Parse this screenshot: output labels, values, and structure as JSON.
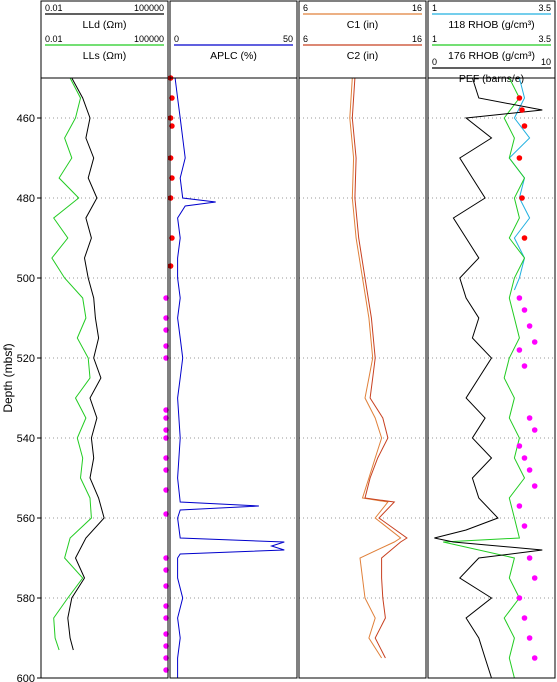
{
  "chart_data": {
    "type": "line",
    "y_axis": {
      "label": "Depth   (mbsf)",
      "range": [
        450,
        600
      ],
      "ticks": [
        460,
        480,
        500,
        520,
        540,
        560,
        580,
        600
      ]
    },
    "tracks": [
      {
        "id": "resistivity",
        "headers": [
          {
            "name": "LLd (Ωm)",
            "min": "0.01",
            "max": "100000",
            "color": "#000000"
          },
          {
            "name": "LLs (Ωm)",
            "min": "0.01",
            "max": "100000",
            "color": "#22cc22"
          }
        ],
        "scale": "log",
        "series": [
          {
            "name": "LLd (Ωm)",
            "color": "#000000",
            "depth": [
              450,
              455,
              460,
              465,
              470,
              475,
              480,
              485,
              490,
              495,
              500,
              505,
              510,
              515,
              520,
              525,
              530,
              535,
              540,
              545,
              550,
              555,
              560,
              565,
              570,
              575,
              580,
              585,
              590,
              593
            ],
            "values": [
              0.5,
              2.0,
              5.0,
              3.0,
              8.0,
              4.0,
              12.0,
              3.0,
              6.0,
              2.5,
              4.0,
              8.0,
              10.0,
              15.0,
              8.0,
              20.0,
              5.0,
              12.0,
              6.0,
              8.0,
              5.0,
              15.0,
              30.0,
              3.0,
              0.8,
              2.5,
              0.5,
              0.3,
              0.4,
              0.6
            ]
          },
          {
            "name": "LLs (Ωm)",
            "color": "#22cc22",
            "depth": [
              450,
              455,
              460,
              465,
              470,
              475,
              480,
              485,
              490,
              495,
              500,
              505,
              510,
              515,
              520,
              525,
              530,
              535,
              540,
              545,
              550,
              555,
              560,
              565,
              570,
              575,
              580,
              585,
              590,
              593
            ],
            "values": [
              0.4,
              1.5,
              0.8,
              0.2,
              0.5,
              0.1,
              1.2,
              0.05,
              0.3,
              0.04,
              0.2,
              2.0,
              3.0,
              1.0,
              4.0,
              5.0,
              0.8,
              3.0,
              1.0,
              2.0,
              1.5,
              5.0,
              6.0,
              0.4,
              0.2,
              2.0,
              0.3,
              0.05,
              0.06,
              0.1
            ]
          }
        ],
        "markers": {
          "color": "#ff00ff",
          "depth": [
            505,
            510,
            513,
            517,
            520,
            533,
            535,
            538,
            540,
            545,
            548,
            553,
            559,
            570,
            573,
            577,
            582,
            585,
            589,
            592,
            595,
            598
          ]
        }
      },
      {
        "id": "porosity",
        "headers": [
          {
            "name": "APLC (%)",
            "min": "0",
            "max": "50",
            "color": "#0000cc"
          }
        ],
        "scale": "linear",
        "series": [
          {
            "name": "APLC (%)",
            "color": "#0000cc",
            "depth": [
              450,
              455,
              460,
              465,
              470,
              475,
              480,
              481,
              482,
              485,
              490,
              495,
              500,
              505,
              510,
              515,
              520,
              525,
              530,
              540,
              550,
              556,
              557,
              558,
              560,
              565,
              566,
              567,
              568,
              569,
              570,
              575,
              580,
              585,
              590,
              595,
              600
            ],
            "values": [
              2,
              3,
              4,
              5,
              6,
              4,
              5,
              18,
              6,
              3,
              4,
              3,
              3,
              4,
              3,
              4,
              5,
              4,
              3,
              4,
              3,
              4,
              35,
              4,
              3,
              4,
              45,
              40,
              45,
              4,
              3,
              3,
              5,
              3,
              4,
              3,
              3
            ]
          }
        ],
        "markers": {
          "color": "#ff0000",
          "depth": [
            450,
            455,
            460,
            462,
            470,
            475,
            480,
            490,
            497
          ]
        }
      },
      {
        "id": "caliper",
        "headers": [
          {
            "name": "C1 (in)",
            "min": "6",
            "max": "16",
            "color": "#e0803a"
          },
          {
            "name": "C2 (in)",
            "min": "6",
            "max": "16",
            "color": "#c84020"
          }
        ],
        "scale": "linear",
        "series": [
          {
            "name": "C1 (in)",
            "color": "#e0803a",
            "depth": [
              450,
              460,
              470,
              480,
              490,
              500,
              510,
              520,
              525,
              530,
              535,
              540,
              545,
              550,
              555,
              556,
              560,
              565,
              566,
              570,
              575,
              580,
              585,
              590,
              595
            ],
            "values": [
              10.2,
              10.0,
              10.3,
              10.2,
              10.5,
              11.0,
              11.5,
              11.8,
              11.5,
              11.2,
              12.0,
              12.5,
              12.0,
              11.5,
              11.0,
              13.0,
              12.0,
              14.0,
              13.5,
              10.8,
              11.0,
              11.2,
              12.0,
              11.5,
              12.5
            ]
          },
          {
            "name": "C2 (in)",
            "color": "#c84020",
            "depth": [
              450,
              460,
              470,
              480,
              490,
              500,
              510,
              520,
              525,
              530,
              535,
              540,
              545,
              550,
              555,
              556,
              560,
              565,
              566,
              570,
              575,
              580,
              585,
              590,
              595
            ],
            "values": [
              10.4,
              10.2,
              10.5,
              10.4,
              10.7,
              11.2,
              11.7,
              12.0,
              11.8,
              11.6,
              12.6,
              13.0,
              12.2,
              11.6,
              11.2,
              13.5,
              12.3,
              14.5,
              14.0,
              12.5,
              12.5,
              12.6,
              12.8,
              12.0,
              12.8
            ]
          }
        ]
      },
      {
        "id": "density",
        "headers": [
          {
            "name": "118 RHOB (g/cm³)",
            "min": "1",
            "max": "3.5",
            "color": "#20b0e0"
          },
          {
            "name": "176 RHOB (g/cm³)",
            "min": "1",
            "max": "3.5",
            "color": "#22cc22"
          },
          {
            "name": "PEF (barns/e)",
            "min": "0",
            "max": "10",
            "color": "#000000"
          }
        ],
        "series": [
          {
            "name": "118 RHOB (g/cm³)",
            "color": "#20b0e0",
            "min": 1,
            "max": 3.5,
            "depth": [
              450,
              455,
              460,
              465,
              470,
              475,
              480,
              485,
              490,
              495,
              500,
              503
            ],
            "values": [
              2.8,
              2.9,
              2.7,
              3.0,
              2.6,
              2.9,
              2.8,
              3.0,
              2.7,
              2.9,
              2.8,
              2.7
            ]
          },
          {
            "name": "176 RHOB (g/cm³)",
            "color": "#22cc22",
            "min": 1,
            "max": 3.5,
            "depth": [
              450,
              455,
              460,
              465,
              470,
              475,
              480,
              485,
              490,
              495,
              500,
              505,
              510,
              515,
              520,
              525,
              530,
              535,
              540,
              545,
              550,
              555,
              560,
              565,
              566,
              570,
              575,
              580,
              585,
              590,
              595,
              600
            ],
            "values": [
              2.6,
              2.8,
              2.5,
              2.7,
              2.6,
              2.9,
              2.7,
              2.8,
              2.6,
              2.9,
              2.7,
              2.6,
              2.7,
              2.8,
              2.6,
              2.5,
              2.7,
              2.6,
              2.8,
              2.7,
              2.9,
              2.6,
              2.7,
              2.8,
              1.3,
              2.7,
              2.6,
              2.8,
              2.5,
              2.7,
              2.6,
              2.7
            ]
          },
          {
            "name": "PEF (barns/e)",
            "color": "#000000",
            "min": 0,
            "max": 10,
            "depth": [
              450,
              455,
              458,
              460,
              465,
              470,
              475,
              480,
              485,
              490,
              495,
              500,
              505,
              510,
              515,
              520,
              525,
              530,
              535,
              540,
              545,
              550,
              555,
              560,
              563,
              565,
              566,
              568,
              570,
              575,
              580,
              585,
              590,
              595,
              600
            ],
            "values": [
              3.5,
              4.0,
              9.0,
              3.0,
              5.0,
              2.5,
              3.5,
              4.5,
              2.0,
              3.0,
              4.0,
              2.5,
              3.0,
              4.0,
              3.5,
              5.0,
              4.0,
              3.0,
              4.5,
              3.5,
              5.0,
              3.5,
              4.0,
              5.5,
              3.0,
              0.5,
              2.0,
              9.0,
              4.0,
              2.5,
              5.0,
              3.0,
              4.0,
              4.5,
              5.0
            ]
          }
        ],
        "markers": [
          {
            "color": "#ff0000",
            "depth": [
              455,
              458,
              462,
              470,
              480,
              490
            ]
          },
          {
            "color": "#ff00ff",
            "depth": [
              505,
              508,
              512,
              516,
              518,
              522,
              535,
              538,
              542,
              545,
              548,
              552,
              557,
              562,
              570,
              575,
              580,
              585,
              590,
              595
            ]
          }
        ]
      }
    ]
  }
}
